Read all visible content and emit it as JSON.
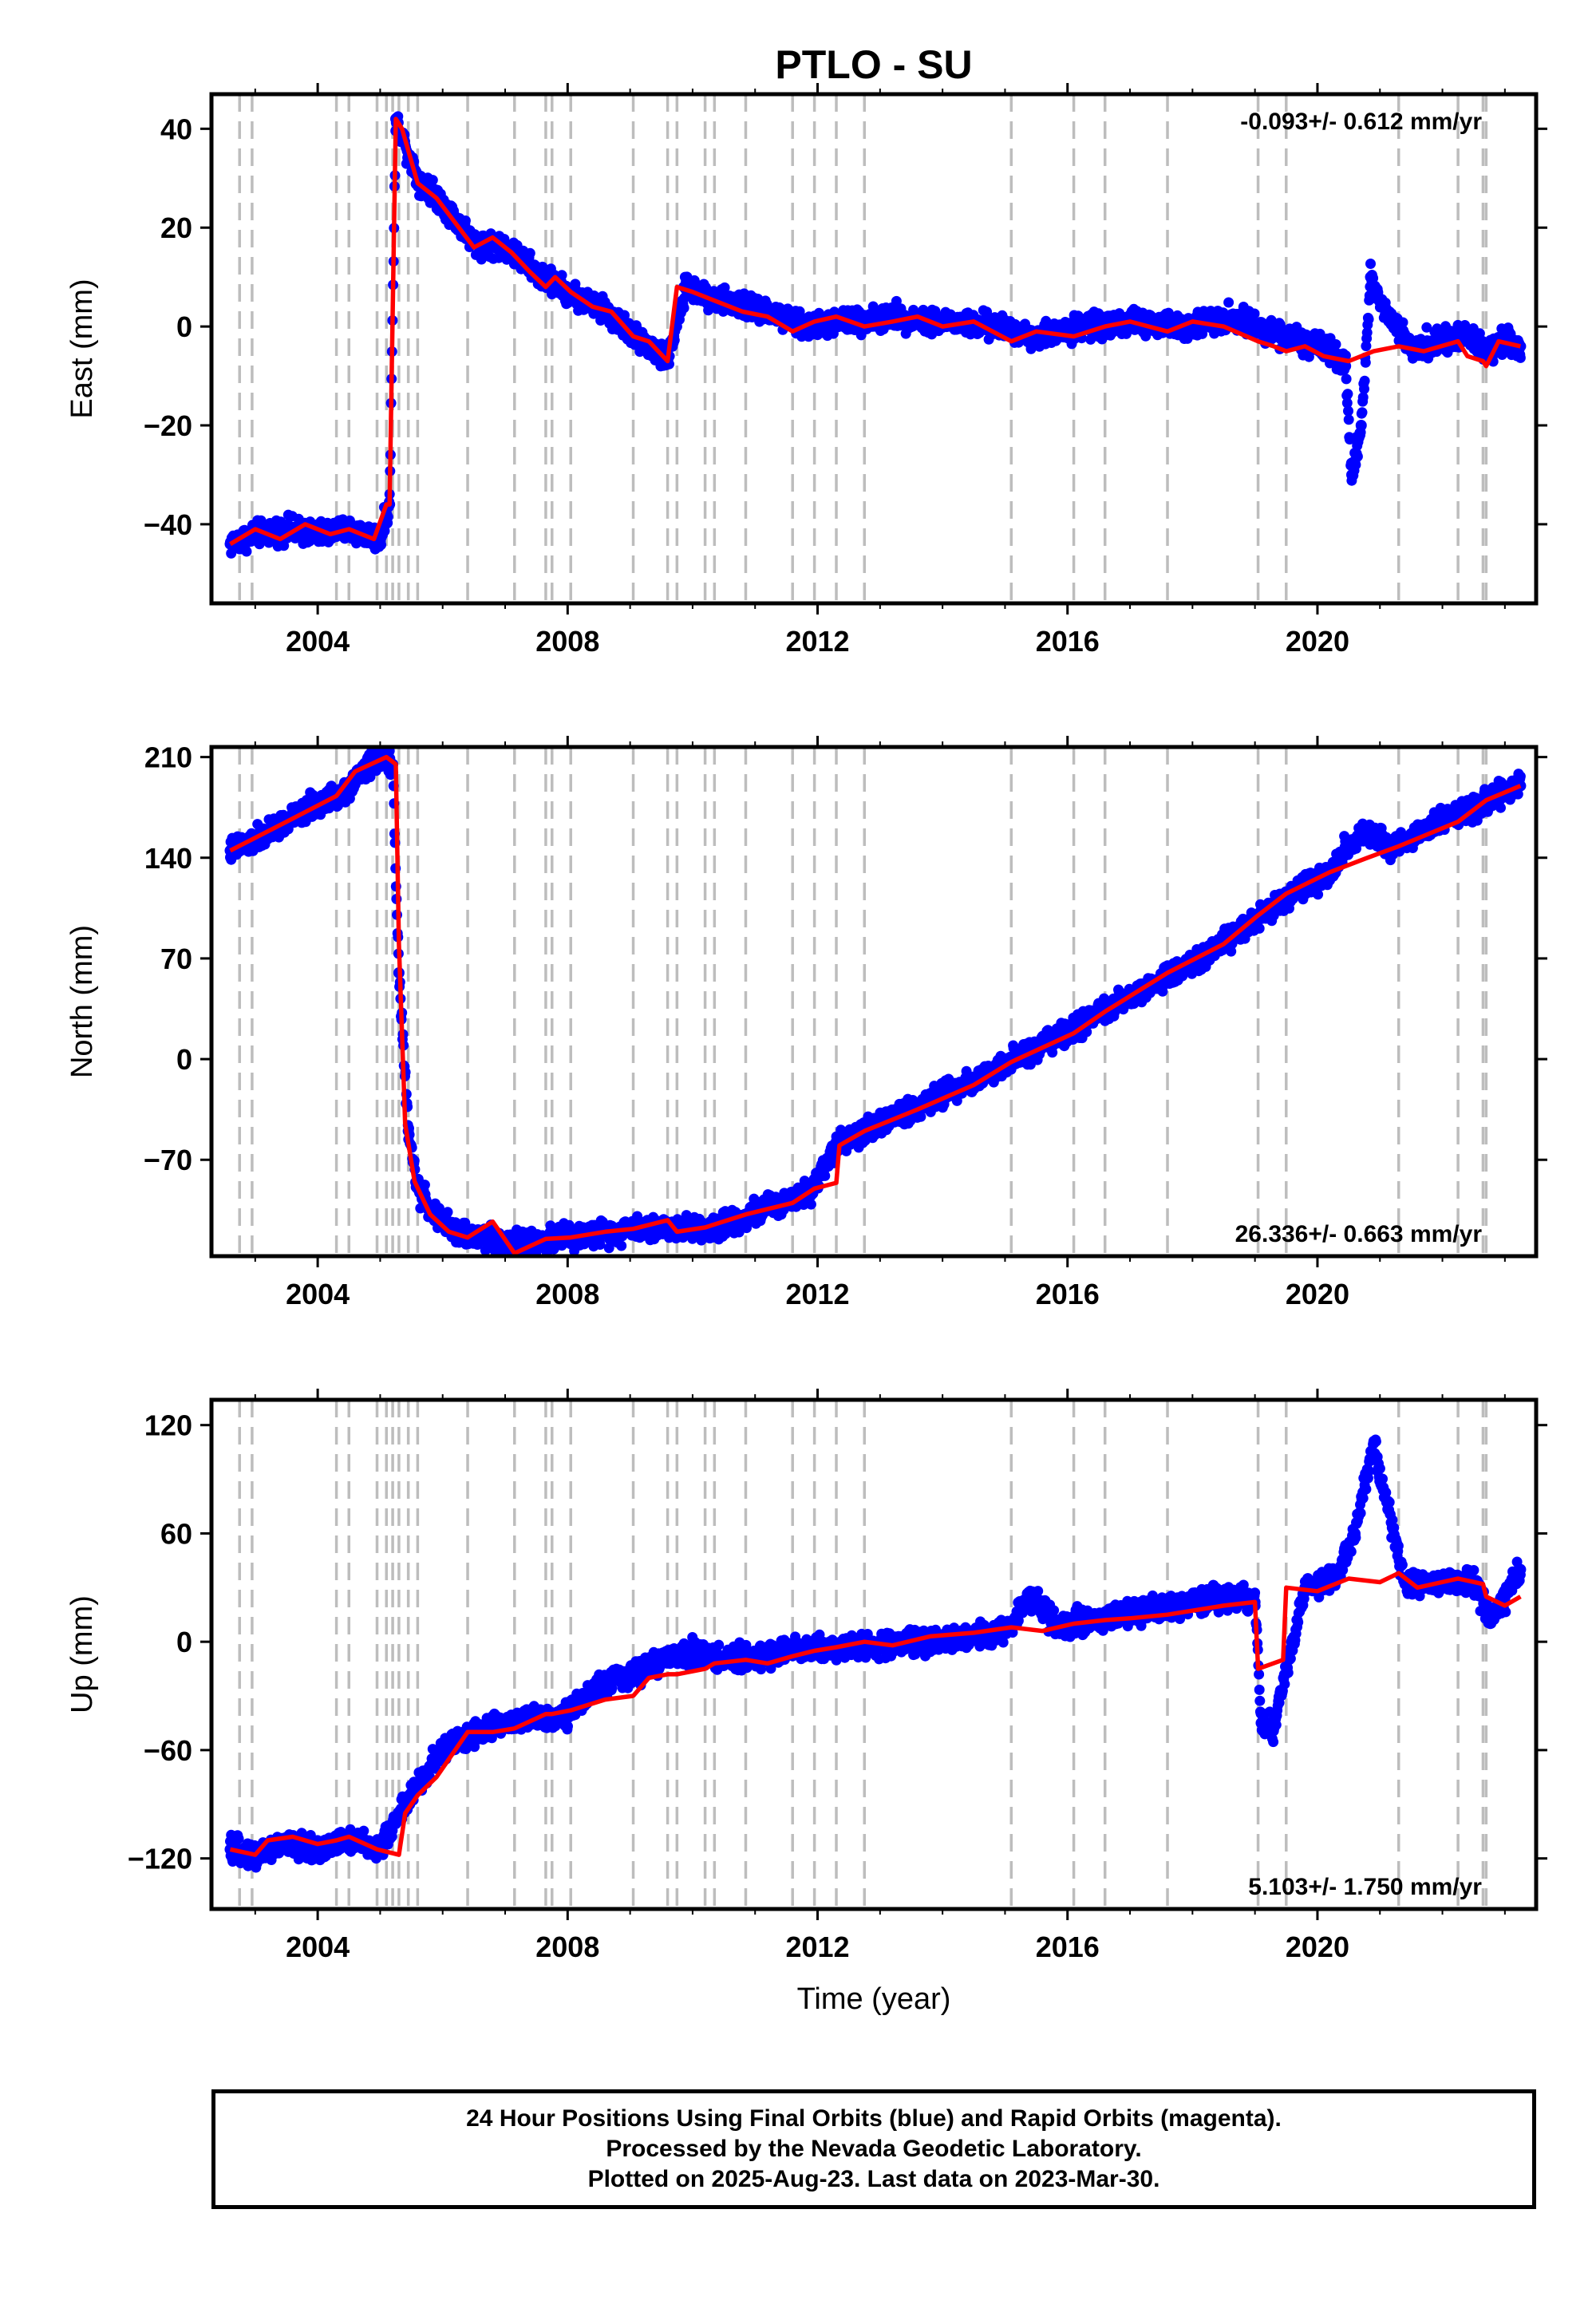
{
  "title": "PTLO - SU",
  "xlabel": "Time (year)",
  "colors": {
    "final_orbits": "#0000ff",
    "model": "#ff0000",
    "event_lines": "#bdbdbd",
    "frame": "#000000"
  },
  "caption": [
    "24 Hour Positions Using Final Orbits (blue) and Rapid Orbits (magenta).",
    "Processed by the Nevada Geodetic Laboratory.",
    "Plotted on 2025-Aug-23. Last data on 2023-Mar-30."
  ],
  "chart_data": [
    {
      "type": "scatter",
      "ylabel": "East (mm)",
      "rate_label": "-0.093+/- 0.612 mm/yr",
      "xlim": [
        2002.3,
        2023.5
      ],
      "ylim": [
        -56,
        47
      ],
      "xticks": [
        2004,
        2008,
        2012,
        2016,
        2020
      ],
      "yticks": [
        -40,
        -20,
        0,
        20,
        40
      ],
      "ytick_labels": [
        "−40",
        "−20",
        "0",
        "20",
        "40"
      ],
      "event_lines": [
        2002.75,
        2002.95,
        2004.3,
        2004.5,
        2004.95,
        2005.1,
        2005.2,
        2005.3,
        2005.45,
        2005.6,
        2006.4,
        2007.15,
        2007.65,
        2007.75,
        2008.05,
        2009.05,
        2009.6,
        2009.75,
        2010.2,
        2010.35,
        2010.85,
        2011.6,
        2011.95,
        2012.3,
        2012.75,
        2015.1,
        2016.1,
        2016.6,
        2017.6,
        2019.05,
        2019.5,
        2021.3,
        2022.25,
        2022.65,
        2022.7
      ],
      "series": [
        {
          "name": "Final Orbits (blue)",
          "style": "points",
          "x": [
            2002.6,
            2003.0,
            2003.5,
            2004.0,
            2004.5,
            2005.0,
            2005.15,
            2005.25,
            2005.6,
            2006.0,
            2006.5,
            2007.0,
            2007.6,
            2008.0,
            2008.6,
            2009.2,
            2009.6,
            2009.9,
            2010.5,
            2011.2,
            2011.8,
            2012.5,
            2013.2,
            2014.0,
            2014.8,
            2015.5,
            2016.2,
            2017.0,
            2017.8,
            2018.6,
            2019.1,
            2019.7,
            2020.2,
            2020.45,
            2020.55,
            2020.7,
            2020.85,
            2021.0,
            2021.5,
            2022.0,
            2022.4,
            2022.7,
            2023.0,
            2023.25
          ],
          "y": [
            -44,
            -42,
            -41,
            -42,
            -41,
            -43,
            -36,
            42,
            30,
            25,
            17,
            16,
            10,
            7,
            3,
            -3,
            -7,
            8,
            5,
            3,
            0,
            1,
            2,
            1,
            0,
            -2,
            0,
            1,
            0,
            2,
            0,
            -3,
            -5,
            -8,
            -30,
            -20,
            10,
            5,
            -4,
            -3,
            -2,
            -5,
            -3,
            -4
          ]
        },
        {
          "name": "Model",
          "style": "line",
          "x": [
            2002.6,
            2003.0,
            2003.4,
            2003.8,
            2004.2,
            2004.5,
            2004.9,
            2005.1,
            2005.15,
            2005.25,
            2005.35,
            2005.6,
            2005.9,
            2006.2,
            2006.5,
            2006.8,
            2007.1,
            2007.4,
            2007.65,
            2007.8,
            2008.05,
            2008.4,
            2008.7,
            2009.05,
            2009.3,
            2009.6,
            2009.75,
            2010.0,
            2010.4,
            2010.8,
            2011.2,
            2011.6,
            2011.95,
            2012.3,
            2012.75,
            2013.2,
            2013.6,
            2014.0,
            2014.5,
            2015.1,
            2015.5,
            2016.1,
            2016.6,
            2017.0,
            2017.6,
            2018.0,
            2018.5,
            2019.05,
            2019.3,
            2019.5,
            2019.8,
            2020.1,
            2020.5,
            2020.9,
            2021.3,
            2021.7,
            2022.25,
            2022.4,
            2022.65,
            2022.7,
            2022.9,
            2023.25
          ],
          "y": [
            -44,
            -41,
            -43,
            -40,
            -42,
            -41,
            -43,
            -36,
            -36,
            42,
            40,
            29,
            26,
            21,
            16,
            18,
            15,
            11,
            8,
            10,
            7,
            4,
            3,
            -2,
            -3,
            -7,
            8,
            7,
            5,
            3,
            2,
            -1,
            1,
            2,
            0,
            1,
            2,
            0,
            1,
            -3,
            -1,
            -2,
            0,
            1,
            -1,
            1,
            0,
            -3,
            -4,
            -5,
            -4,
            -6,
            -7,
            -5,
            -4,
            -5,
            -3,
            -6,
            -7,
            -8,
            -3,
            -4
          ]
        }
      ]
    },
    {
      "type": "scatter",
      "ylabel": "North (mm)",
      "rate_label": "26.336+/- 0.663 mm/yr",
      "xlim": [
        2002.3,
        2023.5
      ],
      "ylim": [
        -137,
        217
      ],
      "xticks": [
        2004,
        2008,
        2012,
        2016,
        2020
      ],
      "yticks": [
        -70,
        0,
        70,
        140,
        210
      ],
      "ytick_labels": [
        "−70",
        "0",
        "70",
        "140",
        "210"
      ],
      "event_lines": [
        2002.75,
        2002.95,
        2004.3,
        2004.5,
        2004.95,
        2005.1,
        2005.2,
        2005.3,
        2005.45,
        2005.6,
        2006.4,
        2007.15,
        2007.65,
        2007.75,
        2008.05,
        2009.05,
        2009.6,
        2009.75,
        2010.2,
        2010.35,
        2010.85,
        2011.6,
        2011.95,
        2012.3,
        2012.75,
        2015.1,
        2016.1,
        2016.6,
        2017.6,
        2019.05,
        2019.5,
        2021.3,
        2022.25,
        2022.65,
        2022.7
      ],
      "series": [
        {
          "name": "Final Orbits (blue)",
          "style": "points",
          "x": [
            2002.6,
            2003.0,
            2003.5,
            2004.0,
            2004.5,
            2004.8,
            2005.0,
            2005.2,
            2005.3,
            2005.45,
            2005.6,
            2005.9,
            2006.3,
            2006.8,
            2007.2,
            2007.8,
            2008.4,
            2009.0,
            2009.6,
            2010.2,
            2010.8,
            2011.4,
            2011.9,
            2012.3,
            2012.8,
            2013.5,
            2014.2,
            2015.0,
            2015.6,
            2016.2,
            2017.0,
            2017.8,
            2018.5,
            2019.1,
            2019.6,
            2020.2,
            2020.5,
            2020.8,
            2021.2,
            2021.8,
            2022.4,
            2022.8,
            2023.25
          ],
          "y": [
            145,
            152,
            165,
            177,
            188,
            205,
            208,
            205,
            60,
            -50,
            -90,
            -110,
            -122,
            -124,
            -129,
            -125,
            -122,
            -117,
            -117,
            -118,
            -110,
            -100,
            -90,
            -60,
            -48,
            -35,
            -20,
            -5,
            10,
            23,
            43,
            62,
            80,
            100,
            115,
            128,
            150,
            155,
            148,
            162,
            172,
            182,
            190
          ]
        },
        {
          "name": "Model",
          "style": "line",
          "x": [
            2002.6,
            2003.5,
            2004.3,
            2004.6,
            2004.95,
            2005.1,
            2005.25,
            2005.3,
            2005.4,
            2005.55,
            2005.8,
            2006.1,
            2006.4,
            2006.8,
            2007.15,
            2007.65,
            2008.05,
            2008.6,
            2009.05,
            2009.6,
            2009.75,
            2010.2,
            2010.85,
            2011.6,
            2011.95,
            2012.3,
            2012.35,
            2012.75,
            2013.6,
            2014.5,
            2015.1,
            2016.1,
            2016.6,
            2017.6,
            2018.5,
            2019.05,
            2019.5,
            2020.2,
            2020.8,
            2021.3,
            2022.25,
            2022.7,
            2023.25
          ],
          "y": [
            145,
            165,
            183,
            200,
            207,
            210,
            205,
            80,
            -45,
            -85,
            -108,
            -120,
            -124,
            -113,
            -135,
            -125,
            -124,
            -120,
            -118,
            -112,
            -120,
            -117,
            -108,
            -100,
            -90,
            -86,
            -60,
            -50,
            -35,
            -18,
            -2,
            18,
            33,
            60,
            80,
            100,
            115,
            130,
            140,
            148,
            165,
            180,
            190
          ]
        }
      ]
    },
    {
      "type": "scatter",
      "ylabel": "Up (mm)",
      "rate_label": "5.103+/- 1.750 mm/yr",
      "xlim": [
        2002.3,
        2023.5
      ],
      "ylim": [
        -148,
        134
      ],
      "xticks": [
        2004,
        2008,
        2012,
        2016,
        2020
      ],
      "yticks": [
        -120,
        -60,
        0,
        60,
        120
      ],
      "ytick_labels": [
        "−120",
        "−60",
        "0",
        "60",
        "120"
      ],
      "event_lines": [
        2002.75,
        2002.95,
        2004.3,
        2004.5,
        2004.95,
        2005.1,
        2005.2,
        2005.3,
        2005.45,
        2005.6,
        2006.4,
        2007.15,
        2007.65,
        2007.75,
        2008.05,
        2009.05,
        2009.6,
        2009.75,
        2010.2,
        2010.35,
        2010.85,
        2011.6,
        2011.95,
        2012.3,
        2012.75,
        2015.1,
        2016.1,
        2016.6,
        2017.6,
        2019.05,
        2019.5,
        2021.3,
        2022.25,
        2022.65,
        2022.7
      ],
      "series": [
        {
          "name": "Final Orbits (blue)",
          "style": "points",
          "x": [
            2002.6,
            2003.0,
            2003.5,
            2004.0,
            2004.5,
            2005.0,
            2005.3,
            2005.6,
            2006.0,
            2006.5,
            2007.0,
            2007.5,
            2008.0,
            2008.5,
            2009.0,
            2009.5,
            2010.0,
            2010.5,
            2011.0,
            2011.5,
            2012.0,
            2012.8,
            2013.5,
            2014.2,
            2015.0,
            2015.4,
            2015.8,
            2016.4,
            2017.0,
            2017.8,
            2018.5,
            2019.0,
            2019.1,
            2019.3,
            2019.8,
            2020.3,
            2020.6,
            2020.9,
            2021.4,
            2022.0,
            2022.5,
            2022.8,
            2023.25
          ],
          "y": [
            -115,
            -118,
            -112,
            -115,
            -110,
            -115,
            -95,
            -80,
            -60,
            -50,
            -45,
            -42,
            -40,
            -25,
            -18,
            -10,
            -5,
            -10,
            -8,
            -5,
            -3,
            -3,
            0,
            2,
            5,
            25,
            10,
            12,
            15,
            20,
            25,
            22,
            -45,
            -48,
            30,
            35,
            60,
            110,
            32,
            33,
            34,
            12,
            40
          ]
        },
        {
          "name": "Model",
          "style": "line",
          "x": [
            2002.6,
            2003.0,
            2003.2,
            2003.6,
            2004.0,
            2004.3,
            2004.5,
            2004.95,
            2005.3,
            2005.4,
            2005.6,
            2005.9,
            2006.4,
            2006.8,
            2007.15,
            2007.65,
            2007.75,
            2008.05,
            2008.6,
            2009.05,
            2009.3,
            2009.6,
            2009.75,
            2010.2,
            2010.35,
            2010.85,
            2011.2,
            2011.6,
            2011.95,
            2012.3,
            2012.75,
            2013.2,
            2013.8,
            2014.5,
            2015.1,
            2015.6,
            2016.1,
            2016.6,
            2017.0,
            2017.6,
            2018.5,
            2019.0,
            2019.05,
            2019.45,
            2019.5,
            2020.0,
            2020.5,
            2021.0,
            2021.3,
            2021.6,
            2022.25,
            2022.65,
            2022.7,
            2023.0,
            2023.25
          ],
          "y": [
            -115,
            -118,
            -110,
            -108,
            -112,
            -110,
            -108,
            -115,
            -118,
            -95,
            -85,
            -75,
            -50,
            -50,
            -48,
            -40,
            -40,
            -38,
            -32,
            -30,
            -20,
            -18,
            -18,
            -15,
            -12,
            -10,
            -12,
            -8,
            -5,
            -3,
            0,
            -2,
            3,
            5,
            8,
            6,
            10,
            12,
            13,
            15,
            20,
            22,
            -15,
            -10,
            30,
            28,
            35,
            33,
            38,
            30,
            35,
            32,
            25,
            20,
            25
          ]
        }
      ]
    }
  ]
}
